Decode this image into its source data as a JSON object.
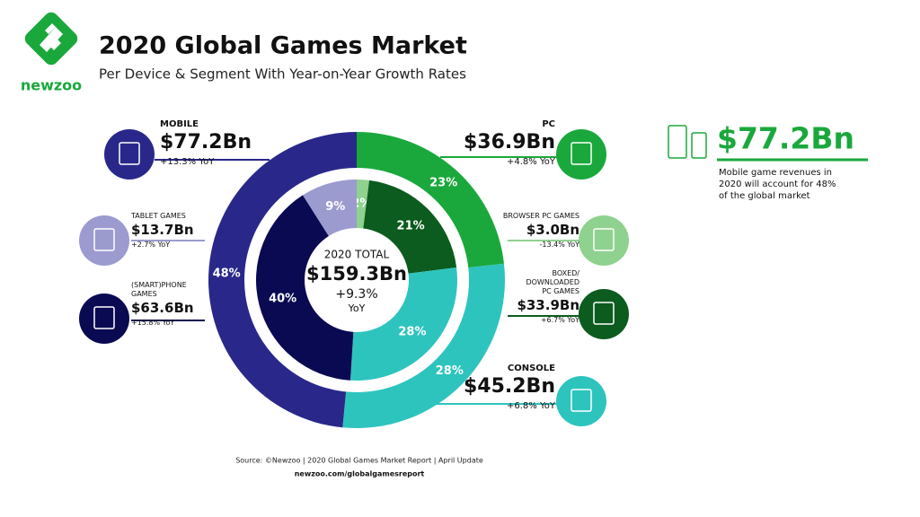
{
  "header": {
    "logo": "newzoo",
    "title": "2020 Global Games Market",
    "subtitle": "Per Device & Segment With Year-on-Year Growth Rates"
  },
  "chart_data": [
    {
      "type": "donut",
      "categories": [
        "PC",
        "CONSOLE",
        "MOBILE"
      ],
      "values": [
        23,
        28,
        48
      ],
      "value_labels": [
        "23%",
        "28%",
        "48%"
      ],
      "colors": [
        "#1aa83c",
        "#2ec4be",
        "#29288a"
      ],
      "revenues": [
        "$36.9Bn",
        "$45.2Bn",
        "$77.2Bn"
      ],
      "growth": [
        "+4.8% YoY",
        "+6.8% YoY",
        "+13.3% YoY"
      ]
    },
    {
      "type": "donut",
      "categories": [
        "BROWSER PC GAMES",
        "BOXED/\nDOWNLOADED\nPC GAMES",
        null,
        "(SMART)PHONE\nGAMES",
        "TABLET GAMES"
      ],
      "values": [
        2,
        21,
        28,
        40,
        9
      ],
      "value_labels": [
        "2%",
        "21%",
        "28%",
        "40%",
        "9%"
      ],
      "colors": [
        "#8fd18f",
        "#0b5c1e",
        "#2ec4be",
        "#0a0a52",
        "#9b9bd0"
      ],
      "revenues": [
        "$3.0Bn",
        "$33.9Bn",
        null,
        "$63.6Bn",
        "$13.7Bn"
      ],
      "growth": [
        "-13.4% YoY",
        "+6.7% YoY",
        null,
        "+15.8% YoY",
        "+2.7% YoY"
      ]
    }
  ],
  "center": {
    "label": "2020 TOTAL",
    "total": "$159.3Bn",
    "growth": "+9.3%",
    "unit": "YoY"
  },
  "highlight": {
    "value": "$77.2Bn",
    "lines": [
      "Mobile game revenues in",
      "2020 will account for 48%",
      "of the global market"
    ]
  },
  "footer": {
    "source": "Source: ©Newzoo | 2020 Global Games Market Report | April Update",
    "url": "newzoo.com/globalgamesreport"
  }
}
